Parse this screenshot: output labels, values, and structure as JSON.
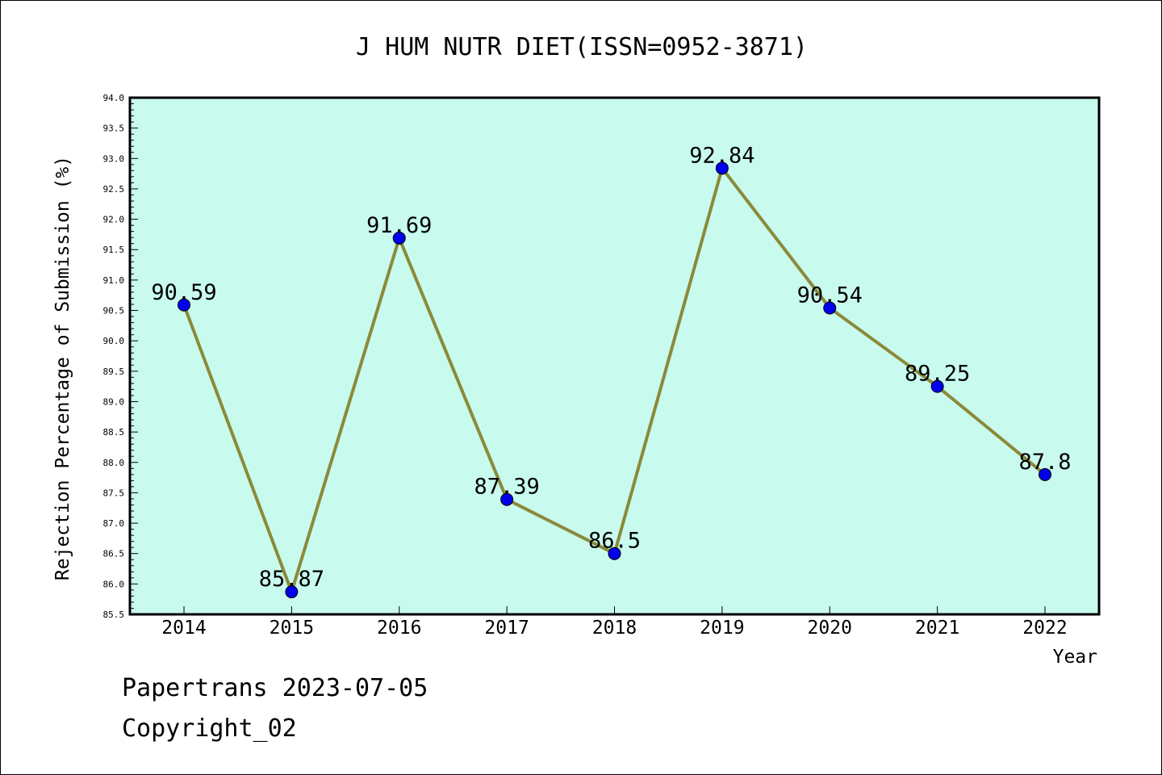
{
  "chart_data": {
    "type": "line",
    "title": "J HUM NUTR DIET(ISSN=0952-3871)",
    "xlabel": "Year",
    "ylabel": "Rejection Percentage of Submission (%)",
    "categories": [
      "2014",
      "2015",
      "2016",
      "2017",
      "2018",
      "2019",
      "2020",
      "2021",
      "2022"
    ],
    "values": [
      90.59,
      85.87,
      91.69,
      87.39,
      86.5,
      92.84,
      90.54,
      89.25,
      87.8
    ],
    "data_labels": [
      "90.59",
      "85.87",
      "91.69",
      "87.39",
      "86.5",
      "92.84",
      "90.54",
      "89.25",
      "87.8"
    ],
    "ylim": [
      85.5,
      94.0
    ],
    "yticks": [
      "85.5",
      "86.0",
      "86.5",
      "87.0",
      "87.5",
      "88.0",
      "88.5",
      "89.0",
      "89.5",
      "90.0",
      "90.5",
      "91.0",
      "91.5",
      "92.0",
      "92.5",
      "93.0",
      "93.5",
      "94.0"
    ],
    "grid": false,
    "colors": {
      "plot_background": "#c8fbee",
      "line": "#8b8a3a",
      "marker": "#0000ee"
    }
  },
  "footer": {
    "line1": "Papertrans 2023-07-05",
    "line2": "Copyright_02"
  }
}
